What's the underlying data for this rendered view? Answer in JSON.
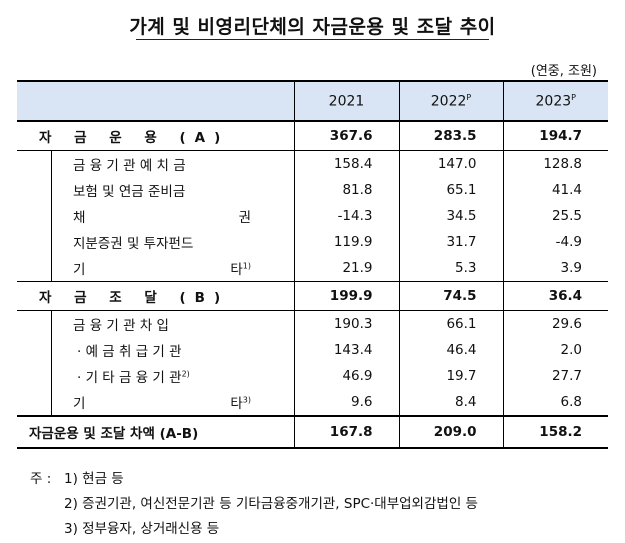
{
  "title": "가계 및 비영리단체의 자금운용 및 조달 추이",
  "unit": "(연중, 조원)",
  "columns": [
    "2021",
    "2022",
    "2023"
  ],
  "column_sup": [
    "",
    "P",
    "P"
  ],
  "rows": [
    {
      "label": "자 금 운 용 (A)",
      "v": [
        "367.6",
        "283.5",
        "194.7"
      ]
    },
    {
      "label": "금 융 기 관 예 치 금",
      "v": [
        "158.4",
        "147.0",
        "128.8"
      ]
    },
    {
      "label": "보험 및 연금 준비금",
      "v": [
        "81.8",
        "65.1",
        "41.4"
      ]
    },
    {
      "label_l": "채",
      "label_r": "권",
      "v": [
        "-14.3",
        "34.5",
        "25.5"
      ]
    },
    {
      "label": "지분증권 및 투자펀드",
      "v": [
        "119.9",
        "31.7",
        "-4.9"
      ]
    },
    {
      "label_l": "기",
      "label_r": "타",
      "sup": "1)",
      "v": [
        "21.9",
        "5.3",
        "3.9"
      ]
    },
    {
      "label": "자 금 조 달 (B)",
      "v": [
        "199.9",
        "74.5",
        "36.4"
      ]
    },
    {
      "label": "금 융 기 관 차 입",
      "v": [
        "190.3",
        "66.1",
        "29.6"
      ]
    },
    {
      "label": "· 예 금 취 급 기 관",
      "v": [
        "143.4",
        "46.4",
        "2.0"
      ]
    },
    {
      "label": "· 기 타 금 융 기 관",
      "sup": "2)",
      "v": [
        "46.9",
        "19.7",
        "27.7"
      ]
    },
    {
      "label_l": "기",
      "label_r": "타",
      "sup": "3)",
      "v": [
        "9.6",
        "8.4",
        "6.8"
      ]
    },
    {
      "label": "자금운용 및 조달 차액 (A-B)",
      "v": [
        "167.8",
        "209.0",
        "158.2"
      ]
    }
  ],
  "footnotes": {
    "prefix": "주 :",
    "n1": "1) 현금 등",
    "n2": "2) 증권기관, 여신전문기관 등 기타금융중개기관, SPC·대부업외감법인 등",
    "n3": "3) 정부융자, 상거래신용 등"
  }
}
